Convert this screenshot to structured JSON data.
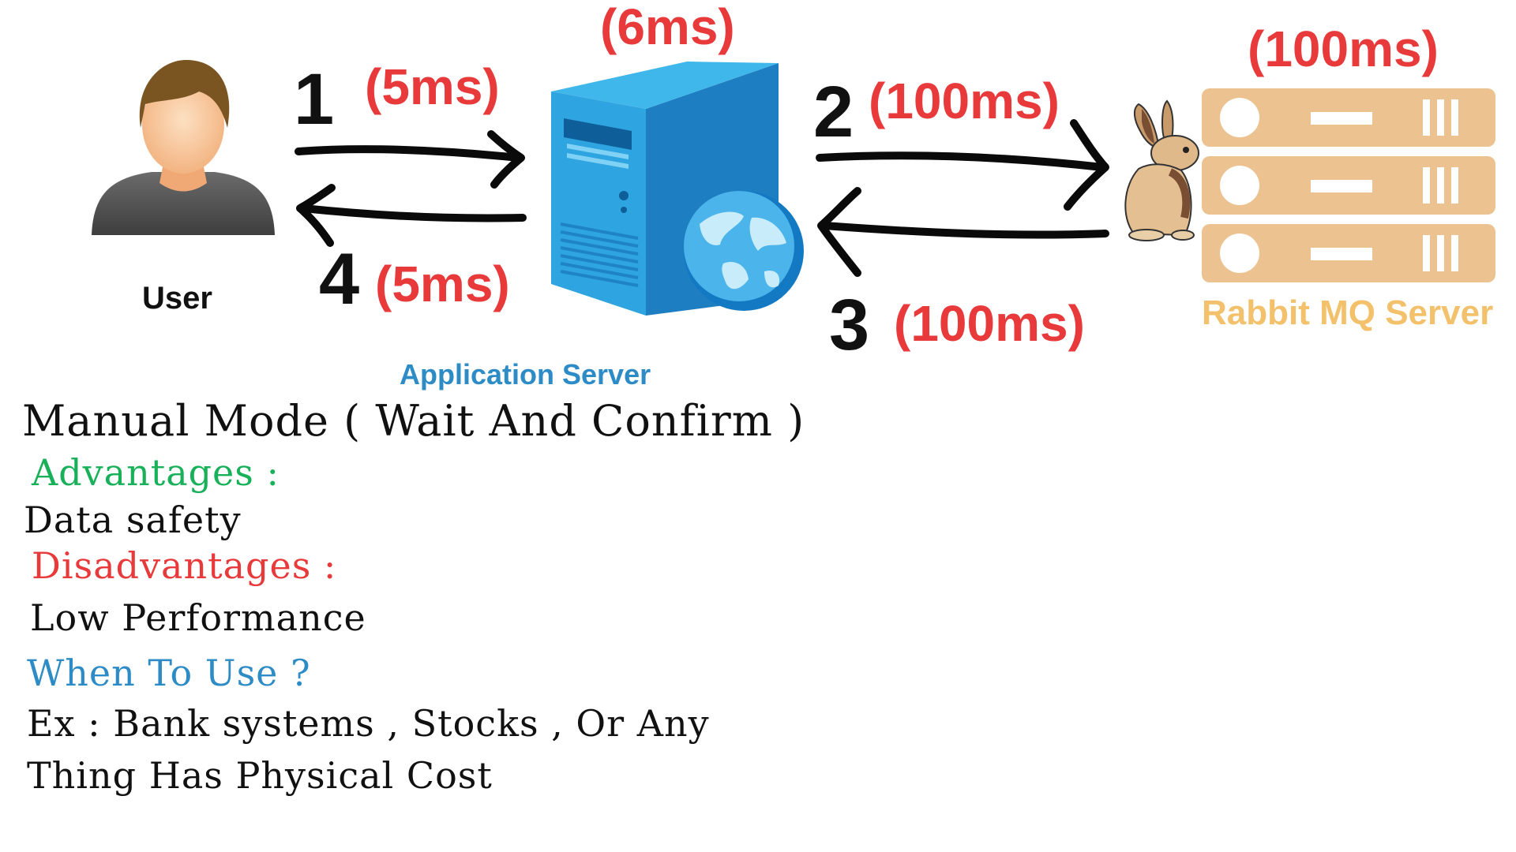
{
  "diagram": {
    "nodes": {
      "user": {
        "label": "User",
        "icon": "user-avatar-icon"
      },
      "app_server": {
        "label": "Application Server",
        "icon": "server-tower-icon",
        "latency": "(6ms)"
      },
      "rabbit": {
        "label": "Rabbit MQ Server",
        "icon": "rabbit-mq-server-icon",
        "latency": "(100ms)"
      }
    },
    "steps": [
      {
        "number": "1",
        "latency": "(5ms)"
      },
      {
        "number": "2",
        "latency": "(100ms)"
      },
      {
        "number": "3",
        "latency": "(100ms)"
      },
      {
        "number": "4",
        "latency": "(5ms)"
      }
    ],
    "colors": {
      "latency": "#e8393b",
      "app_label": "#2d8bc6",
      "rabbit_label": "#f3c16b",
      "advantages": "#19b05a",
      "disadvantages": "#e8393b",
      "when_to_use": "#2d8bc6"
    }
  },
  "notes": {
    "title": "Manual Mode ( Wait And Confirm )",
    "advantages_heading": "Advantages :",
    "advantages_text": "Data safety",
    "disadvantages_heading": "Disadvantages :",
    "disadvantages_text": "Low Performance",
    "when_heading": "When To Use ?",
    "when_line1": "Ex : Bank systems , Stocks , Or Any",
    "when_line2": "Thing Has Physical Cost"
  }
}
